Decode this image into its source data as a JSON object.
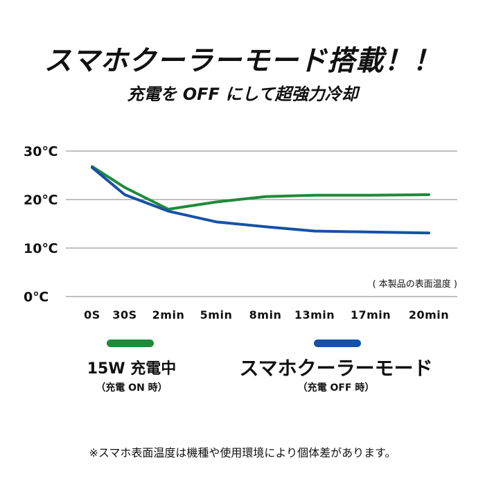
{
  "header": {
    "title": "スマホクーラーモード搭載！！",
    "subtitle": "充電を OFF にして超強力冷却"
  },
  "chart_data": {
    "type": "line",
    "categories": [
      "0S",
      "30S",
      "2min",
      "5min",
      "8min",
      "13min",
      "17min",
      "20min"
    ],
    "series": [
      {
        "name": "15W 充電中",
        "sub": "（充電 ON 時）",
        "color": "#1f8a3a",
        "values": [
          26.8,
          22.5,
          18.0,
          19.5,
          20.6,
          20.9,
          20.9,
          21.0
        ]
      },
      {
        "name": "スマホクーラーモード",
        "sub": "（充電 OFF 時）",
        "color": "#1651a6",
        "values": [
          26.6,
          21.0,
          17.6,
          15.4,
          14.4,
          13.5,
          13.3,
          13.1
        ]
      }
    ],
    "y_ticks": [
      "0℃",
      "10℃",
      "20℃",
      "30℃"
    ],
    "ylim": [
      0,
      30
    ],
    "grid": true,
    "annotation": "( 本製品の表面温度 )"
  },
  "footnote": "※スマホ表面温度は機種や使用環境により個体差があります。"
}
